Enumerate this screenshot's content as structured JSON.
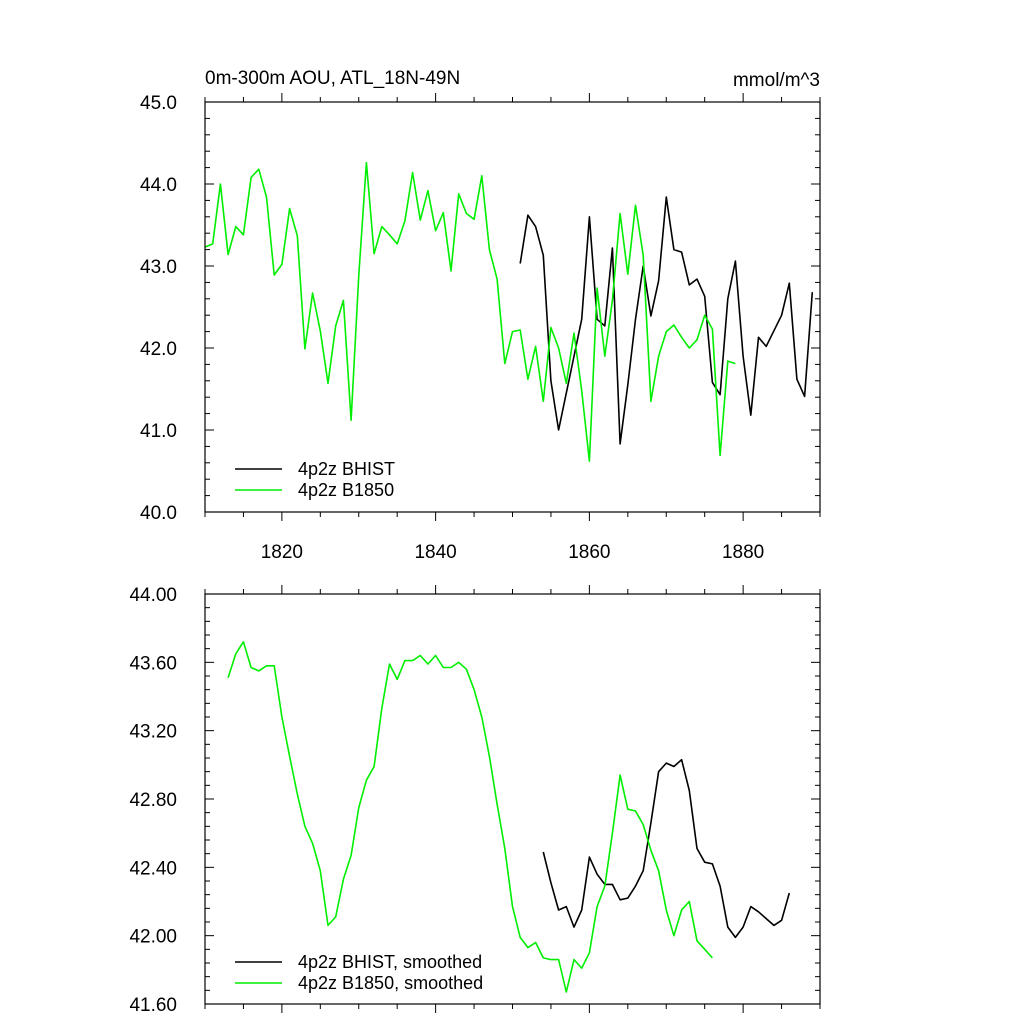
{
  "colors": {
    "bhist": "#000000",
    "b1850": "#00ee00"
  },
  "chart_data": [
    {
      "type": "line",
      "title": "0m-300m AOU, ATL_18N-49N",
      "units": "mmol/m^3",
      "xlim": [
        1810,
        1890
      ],
      "ylim": [
        40.0,
        45.0
      ],
      "x_major_ticks": [
        1820,
        1840,
        1860,
        1880
      ],
      "x_tick_labels": [
        "1820",
        "1840",
        "1860",
        "1880"
      ],
      "y_major_ticks": [
        40.0,
        41.0,
        42.0,
        43.0,
        44.0,
        45.0
      ],
      "y_tick_labels": [
        "40.0",
        "41.0",
        "42.0",
        "43.0",
        "44.0",
        "45.0"
      ],
      "legend": "bottom-left",
      "grid": false,
      "series": [
        {
          "name": "4p2z BHIST",
          "color": "#000000",
          "x": [
            1851,
            1852,
            1853,
            1854,
            1855,
            1856,
            1857,
            1858,
            1859,
            1860,
            1861,
            1862,
            1863,
            1864,
            1865,
            1866,
            1867,
            1868,
            1869,
            1870,
            1871,
            1872,
            1873,
            1874,
            1875,
            1876,
            1877,
            1878,
            1879,
            1880,
            1881,
            1882,
            1883,
            1884,
            1885,
            1886,
            1887,
            1888,
            1889
          ],
          "y": [
            43.03,
            43.62,
            43.48,
            43.13,
            41.6,
            41.0,
            41.45,
            41.9,
            42.35,
            43.6,
            42.35,
            42.27,
            43.22,
            40.83,
            41.55,
            42.35,
            43.0,
            42.39,
            42.82,
            43.84,
            43.2,
            43.17,
            42.77,
            42.84,
            42.63,
            41.58,
            41.43,
            42.6,
            43.06,
            41.9,
            41.18,
            42.13,
            42.02,
            42.21,
            42.4,
            42.79,
            41.62,
            41.41,
            42.68
          ]
        },
        {
          "name": "4p2z B1850",
          "color": "#00ee00",
          "x": [
            1810,
            1811,
            1812,
            1813,
            1814,
            1815,
            1816,
            1817,
            1818,
            1819,
            1820,
            1821,
            1822,
            1823,
            1824,
            1825,
            1826,
            1827,
            1828,
            1829,
            1830,
            1831,
            1832,
            1833,
            1834,
            1835,
            1836,
            1837,
            1838,
            1839,
            1840,
            1841,
            1842,
            1843,
            1844,
            1845,
            1846,
            1847,
            1848,
            1849,
            1850,
            1851,
            1852,
            1853,
            1854,
            1855,
            1856,
            1857,
            1858,
            1859,
            1860,
            1861,
            1862,
            1863,
            1864,
            1865,
            1866,
            1867,
            1868,
            1869,
            1870,
            1871,
            1872,
            1873,
            1874,
            1875,
            1876,
            1877,
            1878,
            1879
          ],
          "y": [
            43.23,
            43.27,
            44.0,
            43.14,
            43.48,
            43.38,
            44.08,
            44.18,
            43.84,
            42.89,
            43.02,
            43.7,
            43.37,
            41.99,
            42.67,
            42.21,
            41.57,
            42.27,
            42.58,
            41.12,
            42.89,
            44.26,
            43.15,
            43.48,
            43.38,
            43.27,
            43.55,
            44.14,
            43.56,
            43.92,
            43.43,
            43.65,
            42.94,
            43.88,
            43.64,
            43.57,
            44.1,
            43.2,
            42.84,
            41.81,
            42.2,
            42.22,
            41.62,
            42.02,
            41.35,
            42.25,
            42.0,
            41.57,
            42.18,
            41.48,
            40.62,
            42.73,
            41.9,
            42.58,
            43.64,
            42.9,
            43.74,
            43.13,
            41.35,
            41.9,
            42.2,
            42.28,
            42.13,
            42.0,
            42.1,
            42.4,
            42.23,
            40.69,
            41.84,
            41.81
          ]
        }
      ]
    },
    {
      "type": "line",
      "xlim": [
        1810,
        1890
      ],
      "ylim": [
        41.6,
        44.0
      ],
      "x_major_ticks": [
        1820,
        1840,
        1860,
        1880
      ],
      "y_major_ticks": [
        41.6,
        42.0,
        42.4,
        42.8,
        43.2,
        43.6,
        44.0
      ],
      "y_tick_labels": [
        "41.60",
        "42.00",
        "42.40",
        "42.80",
        "43.20",
        "43.60",
        "44.00"
      ],
      "legend": "bottom-left",
      "grid": false,
      "series": [
        {
          "name": "4p2z BHIST, smoothed",
          "color": "#000000",
          "x": [
            1854,
            1855,
            1856,
            1857,
            1858,
            1859,
            1860,
            1861,
            1862,
            1863,
            1864,
            1865,
            1866,
            1867,
            1868,
            1869,
            1870,
            1871,
            1872,
            1873,
            1874,
            1875,
            1876,
            1877,
            1878,
            1879,
            1880,
            1881,
            1882,
            1883,
            1884,
            1885,
            1886
          ],
          "y": [
            42.49,
            42.31,
            42.15,
            42.17,
            42.05,
            42.15,
            42.46,
            42.36,
            42.3,
            42.3,
            42.21,
            42.22,
            42.29,
            42.38,
            42.66,
            42.96,
            43.01,
            42.99,
            43.03,
            42.85,
            42.51,
            42.43,
            42.42,
            42.29,
            42.05,
            41.99,
            42.05,
            42.17,
            42.14,
            42.1,
            42.06,
            42.09,
            42.25
          ]
        },
        {
          "name": "4p2z B1850, smoothed",
          "color": "#00ee00",
          "x": [
            1813,
            1814,
            1815,
            1816,
            1817,
            1818,
            1819,
            1820,
            1821,
            1822,
            1823,
            1824,
            1825,
            1826,
            1827,
            1828,
            1829,
            1830,
            1831,
            1832,
            1833,
            1834,
            1835,
            1836,
            1837,
            1838,
            1839,
            1840,
            1841,
            1842,
            1843,
            1844,
            1845,
            1846,
            1847,
            1848,
            1849,
            1850,
            1851,
            1852,
            1853,
            1854,
            1855,
            1856,
            1857,
            1858,
            1859,
            1860,
            1861,
            1862,
            1863,
            1864,
            1865,
            1866,
            1867,
            1868,
            1869,
            1870,
            1871,
            1872,
            1873,
            1874,
            1875,
            1876
          ],
          "y": [
            43.51,
            43.65,
            43.72,
            43.57,
            43.55,
            43.58,
            43.58,
            43.28,
            43.05,
            42.83,
            42.64,
            42.54,
            42.38,
            42.06,
            42.11,
            42.33,
            42.47,
            42.75,
            42.91,
            42.99,
            43.33,
            43.59,
            43.5,
            43.61,
            43.61,
            43.64,
            43.59,
            43.64,
            43.57,
            43.57,
            43.6,
            43.56,
            43.44,
            43.28,
            43.05,
            42.77,
            42.51,
            42.17,
            41.99,
            41.93,
            41.96,
            41.87,
            41.86,
            41.86,
            41.67,
            41.86,
            41.81,
            41.9,
            42.17,
            42.29,
            42.6,
            42.94,
            42.74,
            42.73,
            42.65,
            42.5,
            42.38,
            42.15,
            42.0,
            42.15,
            42.2,
            41.97,
            41.92,
            41.87
          ]
        }
      ]
    }
  ]
}
